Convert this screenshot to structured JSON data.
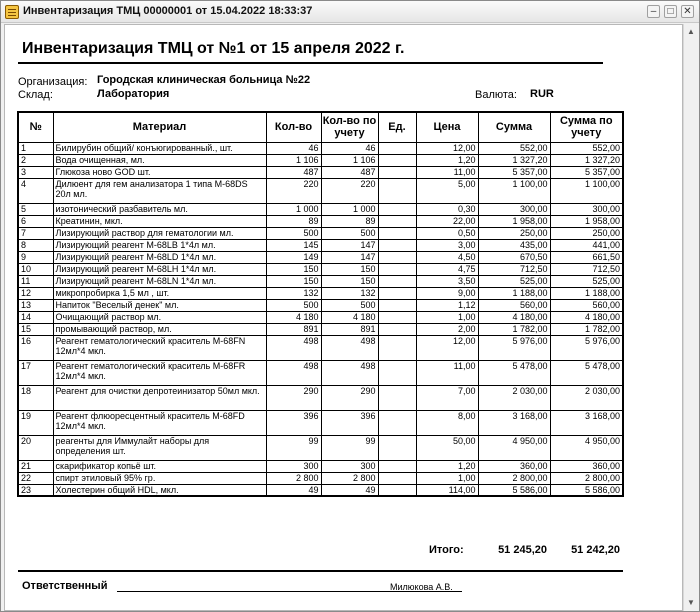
{
  "window": {
    "title": "Инвентаризация ТМЦ 00000001 от 15.04.2022 18:33:37",
    "min": "–",
    "max": "□",
    "close": "✕"
  },
  "doc": {
    "title": "Инвентаризация ТМЦ от №1 от 15 апреля 2022 г.",
    "org_label": "Организация:",
    "org_value": "Городская клиническая больница №22",
    "wh_label": "Склад:",
    "wh_value": "Лаборатория",
    "cur_label": "Валюта:",
    "cur_value": "RUR"
  },
  "table": {
    "headers": [
      "№",
      "Материал",
      "Кол-во",
      "Кол-во по учету",
      "Ед.",
      "Цена",
      "Сумма",
      "Сумма по учету"
    ],
    "rows": [
      [
        "1",
        "Билирубин общий/ конъюгированный., шт.",
        "46",
        "46",
        "",
        "12,00",
        "552,00",
        "552,00"
      ],
      [
        "2",
        "Вода очищенная, мл.",
        "1 106",
        "1 106",
        "",
        "1,20",
        "1 327,20",
        "1 327,20"
      ],
      [
        "3",
        "Глюкоза ново GOD  шт.",
        "487",
        "487",
        "",
        "11,00",
        "5 357,00",
        "5 357,00"
      ],
      [
        "4",
        "Дилюент для гем анализатора 1 типа М-68DS 20л мл.",
        "220",
        "220",
        "",
        "5,00",
        "1 100,00",
        "1 100,00"
      ],
      [
        "5",
        "изотонический разбавитель  мл.",
        "1 000",
        "1 000",
        "",
        "0,30",
        "300,00",
        "300,00"
      ],
      [
        "6",
        "Креатинин, мкл.",
        "89",
        "89",
        "",
        "22,00",
        "1 958,00",
        "1 958,00"
      ],
      [
        "7",
        "Лизирующий раствор для гематологии мл.",
        "500",
        "500",
        "",
        "0,50",
        "250,00",
        "250,00"
      ],
      [
        "8",
        "Лизирующий реагент М-68LB 1*4л мл.",
        "145",
        "147",
        "",
        "3,00",
        "435,00",
        "441,00"
      ],
      [
        "9",
        "Лизирующий реагент М-68LD 1*4л мл.",
        "149",
        "147",
        "",
        "4,50",
        "670,50",
        "661,50"
      ],
      [
        "10",
        "Лизирующий реагент М-68LH 1*4л мл.",
        "150",
        "150",
        "",
        "4,75",
        "712,50",
        "712,50"
      ],
      [
        "11",
        "Лизирующий реагент М-68LN 1*4л мл.",
        "150",
        "150",
        "",
        "3,50",
        "525,00",
        "525,00"
      ],
      [
        "12",
        "микропробирка 1,5 мл  , шт.",
        "132",
        "132",
        "",
        "9,00",
        "1 188,00",
        "1 188,00"
      ],
      [
        "13",
        "Напиток \"Веселый денек\" мл.",
        "500",
        "500",
        "",
        "1,12",
        "560,00",
        "560,00"
      ],
      [
        "14",
        "Очищающий раствор мл.",
        "4 180",
        "4 180",
        "",
        "1,00",
        "4 180,00",
        "4 180,00"
      ],
      [
        "15",
        "промывающий раствор, мл.",
        "891",
        "891",
        "",
        "2,00",
        "1 782,00",
        "1 782,00"
      ],
      [
        "16",
        "Реагент гематологический краситель М-68FN 12мл*4  мкл.",
        "498",
        "498",
        "",
        "12,00",
        "5 976,00",
        "5 976,00"
      ],
      [
        "17",
        "Реагент гематологический краситель М-68FR 12мл*4  мкл.",
        "498",
        "498",
        "",
        "11,00",
        "5 478,00",
        "5 478,00"
      ],
      [
        "18",
        "Реагент для очистки депротеинизатор 50мл мкл.",
        "290",
        "290",
        "",
        "7,00",
        "2 030,00",
        "2 030,00"
      ],
      [
        "19",
        "Реагент флюоресцентный краситель М-68FD 12мл*4 мкл.",
        "396",
        "396",
        "",
        "8,00",
        "3 168,00",
        "3 168,00"
      ],
      [
        "20",
        "реагенты для Иммулайт наборы для определения шт.",
        "99",
        "99",
        "",
        "50,00",
        "4 950,00",
        "4 950,00"
      ],
      [
        "21",
        "скарификатор копьё шт.",
        "300",
        "300",
        "",
        "1,20",
        "360,00",
        "360,00"
      ],
      [
        "22",
        "спирт этиловый 95% гр.",
        "2 800",
        "2 800",
        "",
        "1,00",
        "2 800,00",
        "2 800,00"
      ],
      [
        "23",
        "Холестерин общий HDL, мкл.",
        "49",
        "49",
        "",
        "114,00",
        "5 586,00",
        "5 586,00"
      ]
    ]
  },
  "totals": {
    "label": "Итого:",
    "sum": "51 245,20",
    "sum_acc": "51 242,20"
  },
  "signature": {
    "label": "Ответственный",
    "name": "Милюкова А.В."
  }
}
